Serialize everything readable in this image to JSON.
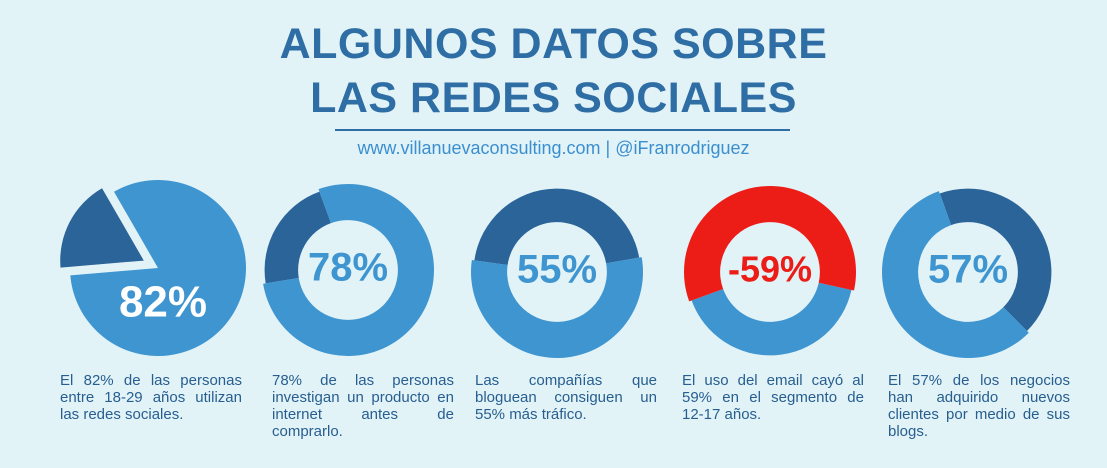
{
  "header": {
    "title": [
      "ALGUNOS DATOS SOBRE",
      "LAS REDES SOCIALES"
    ],
    "subtitle": "www.villanuevaconsulting.com | @iFranrodriguez"
  },
  "chart_data": [
    {
      "type": "pie",
      "values": [
        82
      ],
      "value_labels": [
        "82%"
      ],
      "color": "#3f95d0",
      "rest_color": "#2a6498",
      "label_color": "#ffffff",
      "caption": "El 82% de las personas entre 18-29 años utilizan las redes sociales."
    },
    {
      "type": "donut",
      "values": [
        78
      ],
      "value_labels": [
        "78%"
      ],
      "color": "#3f95d0",
      "rest_color": "#2a6498",
      "label_color": "#3f95d0",
      "caption": "78% de las personas investigan un producto en internet antes de comprarlo."
    },
    {
      "type": "donut",
      "values": [
        55
      ],
      "value_labels": [
        "55%"
      ],
      "color": "#3f95d0",
      "rest_color": "#2a6498",
      "label_color": "#3f95d0",
      "caption": "Las compañías que bloguean consiguen un 55% más tráfico."
    },
    {
      "type": "donut",
      "values": [
        -59
      ],
      "value_labels": [
        "-59%"
      ],
      "color": "#ec1c17",
      "rest_color": "#3f95d0",
      "label_color": "#ec1c17",
      "caption": "El uso del email cayó al 59% en el segmento de 12-17 años."
    },
    {
      "type": "donut",
      "values": [
        57
      ],
      "value_labels": [
        "57%"
      ],
      "color": "#3f95d0",
      "rest_color": "#2a6498",
      "label_color": "#3f95d0",
      "caption": "El 57% de los negocios han adquirido nuevos clientes por medio de sus blogs."
    }
  ]
}
